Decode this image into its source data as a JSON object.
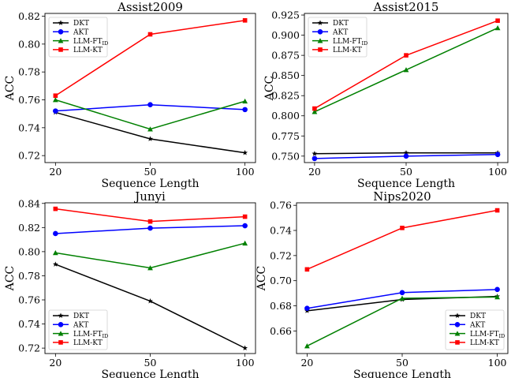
{
  "chart_data": [
    {
      "type": "line",
      "title": "Assist2009",
      "xlabel": "Sequence Length",
      "ylabel": "ACC",
      "categories": [
        "20",
        "50",
        "100"
      ],
      "ylim": [
        0.715,
        0.822
      ],
      "yticks": [
        "0.72",
        "0.74",
        "0.76",
        "0.78",
        "0.80",
        "0.82"
      ],
      "legend_loc": "upper-left",
      "grid": false,
      "series": [
        {
          "name": "DKT",
          "color": "#000000",
          "marker": "star",
          "values": [
            0.751,
            0.732,
            0.722
          ]
        },
        {
          "name": "AKT",
          "color": "#0000ff",
          "marker": "circle",
          "values": [
            0.752,
            0.7565,
            0.753
          ]
        },
        {
          "name": "LLM-FT",
          "name_sub": "ID",
          "color": "#008000",
          "marker": "triangle",
          "values": [
            0.76,
            0.739,
            0.759
          ]
        },
        {
          "name": "LLM-KT",
          "color": "#ff0000",
          "marker": "square",
          "values": [
            0.763,
            0.807,
            0.817
          ]
        }
      ]
    },
    {
      "type": "line",
      "title": "Assist2015",
      "xlabel": "Sequence Length",
      "ylabel": "ACC",
      "categories": [
        "20",
        "50",
        "100"
      ],
      "ylim": [
        0.742,
        0.927
      ],
      "yticks": [
        "0.750",
        "0.775",
        "0.800",
        "0.825",
        "0.850",
        "0.875",
        "0.900",
        "0.925"
      ],
      "legend_loc": "upper-left",
      "grid": false,
      "series": [
        {
          "name": "DKT",
          "color": "#000000",
          "marker": "star",
          "values": [
            0.753,
            0.754,
            0.754
          ]
        },
        {
          "name": "AKT",
          "color": "#0000ff",
          "marker": "circle",
          "values": [
            0.747,
            0.75,
            0.752
          ]
        },
        {
          "name": "LLM-FT",
          "name_sub": "ID",
          "color": "#008000",
          "marker": "triangle",
          "values": [
            0.805,
            0.857,
            0.909
          ]
        },
        {
          "name": "LLM-KT",
          "color": "#ff0000",
          "marker": "square",
          "values": [
            0.809,
            0.875,
            0.918
          ]
        }
      ]
    },
    {
      "type": "line",
      "title": "Junyi",
      "xlabel": "Sequence Length",
      "ylabel": "ACC",
      "categories": [
        "20",
        "50",
        "100"
      ],
      "ylim": [
        0.7155,
        0.8405
      ],
      "yticks": [
        "0.72",
        "0.74",
        "0.76",
        "0.78",
        "0.80",
        "0.82",
        "0.84"
      ],
      "legend_loc": "lower-left",
      "grid": false,
      "series": [
        {
          "name": "DKT",
          "color": "#000000",
          "marker": "star",
          "values": [
            0.7895,
            0.759,
            0.72
          ]
        },
        {
          "name": "AKT",
          "color": "#0000ff",
          "marker": "circle",
          "values": [
            0.815,
            0.8195,
            0.8215
          ]
        },
        {
          "name": "LLM-FT",
          "name_sub": "ID",
          "color": "#008000",
          "marker": "triangle",
          "values": [
            0.799,
            0.7865,
            0.807
          ]
        },
        {
          "name": "LLM-KT",
          "color": "#ff0000",
          "marker": "square",
          "values": [
            0.8355,
            0.825,
            0.829
          ]
        }
      ]
    },
    {
      "type": "line",
      "title": "Nips2020",
      "xlabel": "Sequence Length",
      "ylabel": "ACC",
      "categories": [
        "20",
        "50",
        "100"
      ],
      "ylim": [
        0.642,
        0.762
      ],
      "yticks": [
        "0.66",
        "0.68",
        "0.70",
        "0.72",
        "0.74",
        "0.76"
      ],
      "legend_loc": "lower-right",
      "grid": false,
      "series": [
        {
          "name": "DKT",
          "color": "#000000",
          "marker": "star",
          "values": [
            0.676,
            0.685,
            0.6875
          ]
        },
        {
          "name": "AKT",
          "color": "#0000ff",
          "marker": "circle",
          "values": [
            0.678,
            0.6905,
            0.693
          ]
        },
        {
          "name": "LLM-FT",
          "name_sub": "ID",
          "color": "#008000",
          "marker": "triangle",
          "values": [
            0.648,
            0.686,
            0.687
          ]
        },
        {
          "name": "LLM-KT",
          "color": "#ff0000",
          "marker": "square",
          "values": [
            0.709,
            0.742,
            0.756
          ]
        }
      ]
    }
  ]
}
